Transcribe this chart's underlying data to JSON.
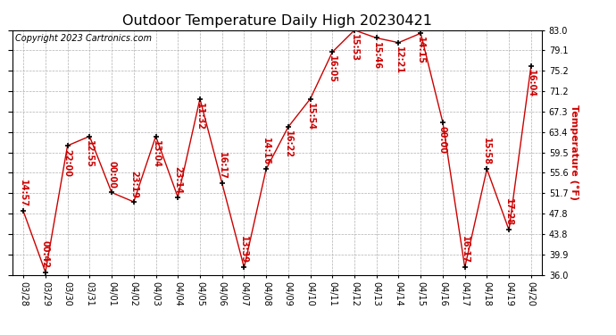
{
  "title": "Outdoor Temperature Daily High 20230421",
  "copyright": "Copyright 2023 Cartronics.com",
  "ylabel": "Temperature (°F)",
  "dates": [
    "03/28",
    "03/29",
    "03/30",
    "03/31",
    "04/01",
    "04/02",
    "04/03",
    "04/04",
    "04/05",
    "04/06",
    "04/07",
    "04/08",
    "04/09",
    "04/10",
    "04/11",
    "04/12",
    "04/13",
    "04/14",
    "04/15",
    "04/16",
    "04/17",
    "04/18",
    "04/19",
    "04/20"
  ],
  "temps": [
    48.2,
    36.5,
    60.8,
    62.6,
    51.8,
    50.0,
    62.6,
    50.9,
    69.8,
    53.6,
    37.4,
    56.3,
    64.4,
    69.8,
    78.8,
    83.0,
    81.5,
    80.6,
    82.4,
    65.3,
    37.4,
    56.3,
    44.6,
    76.1
  ],
  "times": [
    "14:57",
    "00:42",
    "22:00",
    "12:55",
    "00:00",
    "23:19",
    "13:04",
    "23:14",
    "11:32",
    "16:17",
    "13:39",
    "14:16",
    "16:22",
    "15:54",
    "16:05",
    "15:53",
    "15:46",
    "12:21",
    "14:15",
    "00:00",
    "16:17",
    "15:58",
    "17:28",
    "16:04"
  ],
  "line_color": "#cc0000",
  "marker_color": "#000000",
  "background_color": "#ffffff",
  "grid_color": "#b0b0b0",
  "ylim_min": 36.0,
  "ylim_max": 83.0,
  "yticks": [
    36.0,
    39.9,
    43.8,
    47.8,
    51.7,
    55.6,
    59.5,
    63.4,
    67.3,
    71.2,
    75.2,
    79.1,
    83.0
  ],
  "label_fontsize": 7.0,
  "title_fontsize": 11.5,
  "annotation_fontsize": 7.0,
  "copyright_fontsize": 7.0
}
